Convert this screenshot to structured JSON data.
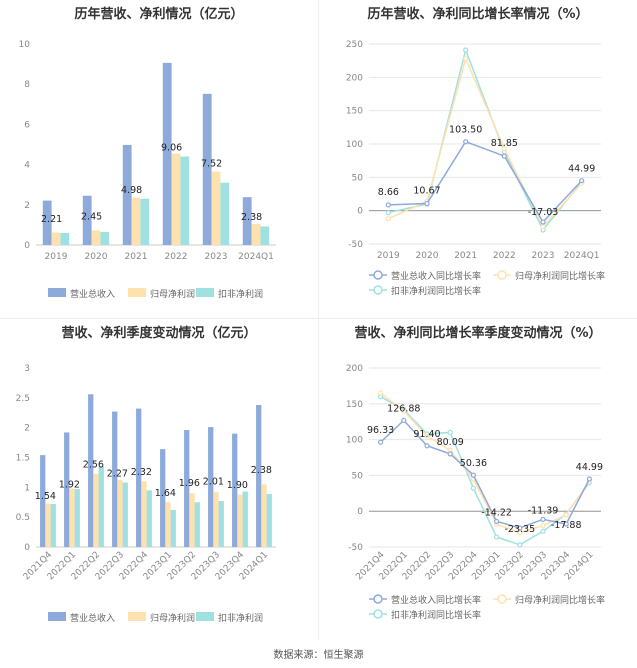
{
  "colors": {
    "revenue": "#8eaadb",
    "net_profit": "#ffe1ae",
    "deducted_profit": "#9fe1e1",
    "axis": "#999999",
    "grid": "#e6e6e6",
    "text": "#333333"
  },
  "footer": {
    "source": "数据来源：恒生聚源"
  },
  "chart_data": [
    {
      "type": "bar",
      "title": "历年营收、净利情况（亿元）",
      "categories": [
        "2019",
        "2020",
        "2021",
        "2022",
        "2023",
        "2024Q1"
      ],
      "ylim": [
        0,
        10
      ],
      "yticks": [
        0,
        2,
        4,
        6,
        8,
        10
      ],
      "series": [
        {
          "name": "营业总收入",
          "values": [
            2.21,
            2.45,
            4.98,
            9.06,
            7.52,
            2.38
          ]
        },
        {
          "name": "归母净利润",
          "values": [
            0.62,
            0.72,
            2.35,
            4.55,
            3.65,
            1.05
          ]
        },
        {
          "name": "扣非净利润",
          "values": [
            0.6,
            0.65,
            2.3,
            4.4,
            3.1,
            0.92
          ]
        }
      ],
      "data_labels": [
        "2.21",
        "2.45",
        "4.98",
        "9.06",
        "7.52",
        "2.38"
      ],
      "legend": "bottom",
      "grid": false
    },
    {
      "type": "line",
      "title": "历年营收、净利同比增长率情况（%）",
      "categories": [
        "2019",
        "2020",
        "2021",
        "2022",
        "2023",
        "2024Q1"
      ],
      "ylim": [
        -50,
        250
      ],
      "yticks": [
        -50,
        0,
        50,
        100,
        150,
        200,
        250
      ],
      "series": [
        {
          "name": "营业总收入同比增长率",
          "values": [
            8.66,
            10.67,
            103.5,
            81.85,
            -17.03,
            44.99
          ]
        },
        {
          "name": "归母净利润同比增长率",
          "values": [
            -12,
            14,
            228,
            93,
            -24,
            41
          ]
        },
        {
          "name": "扣非净利润同比增长率",
          "values": [
            -3,
            10,
            241,
            88,
            -29,
            43
          ]
        }
      ],
      "data_labels": [
        "8.66",
        "10.67",
        "103.50",
        "81.85",
        "-17.03",
        "44.99"
      ],
      "legend": "bottom",
      "grid": true
    },
    {
      "type": "bar",
      "title": "营收、净利季度变动情况（亿元）",
      "categories": [
        "2021Q4",
        "2022Q1",
        "2022Q2",
        "2022Q3",
        "2022Q4",
        "2023Q1",
        "2023Q2",
        "2023Q3",
        "2023Q4",
        "2024Q1"
      ],
      "ylim": [
        0,
        3
      ],
      "yticks": [
        0,
        0.5,
        1,
        1.5,
        2,
        2.5,
        3
      ],
      "series": [
        {
          "name": "营业总收入",
          "values": [
            1.54,
            1.92,
            2.56,
            2.27,
            2.32,
            1.64,
            1.96,
            2.01,
            1.9,
            2.38
          ]
        },
        {
          "name": "归母净利润",
          "values": [
            0.73,
            0.98,
            1.23,
            1.12,
            1.1,
            0.75,
            0.9,
            0.92,
            0.88,
            1.05
          ]
        },
        {
          "name": "扣非净利润",
          "values": [
            0.72,
            0.97,
            1.35,
            1.08,
            0.95,
            0.62,
            0.75,
            0.77,
            0.93,
            0.89
          ]
        }
      ],
      "data_labels": [
        "1.54",
        "1.92",
        "2.56",
        "2.27",
        "2.32",
        "1.64",
        "1.96",
        "2.01",
        "1.90",
        "2.38"
      ],
      "legend": "bottom",
      "grid": false
    },
    {
      "type": "line",
      "title": "营收、净利同比增长率季度变动情况（%）",
      "categories": [
        "2021Q4",
        "2022Q1",
        "2022Q2",
        "2022Q3",
        "2022Q4",
        "2023Q1",
        "2023Q2",
        "2023Q3",
        "2023Q4",
        "2024Q1"
      ],
      "ylim": [
        -50,
        200
      ],
      "yticks": [
        -50,
        0,
        50,
        100,
        150,
        200
      ],
      "series": [
        {
          "name": "营业总收入同比增长率",
          "values": [
            96.33,
            126.88,
            91.4,
            80.09,
            50.36,
            -14.22,
            -23.35,
            -11.39,
            -17.88,
            44.99
          ]
        },
        {
          "name": "归母净利润同比增长率",
          "values": [
            165,
            140,
            105,
            85,
            45,
            -18,
            -30,
            -20,
            -5,
            42
          ]
        },
        {
          "name": "扣非净利润同比增长率",
          "values": [
            160,
            142,
            108,
            110,
            32,
            -36,
            -47,
            -28,
            -4,
            40
          ]
        }
      ],
      "data_labels": [
        "96.33",
        "126.88",
        "91.40",
        "80.09",
        "50.36",
        "-14.22",
        "-23.35",
        "-11.39",
        "-17.88",
        "44.99"
      ],
      "legend": "bottom",
      "grid": true
    }
  ]
}
